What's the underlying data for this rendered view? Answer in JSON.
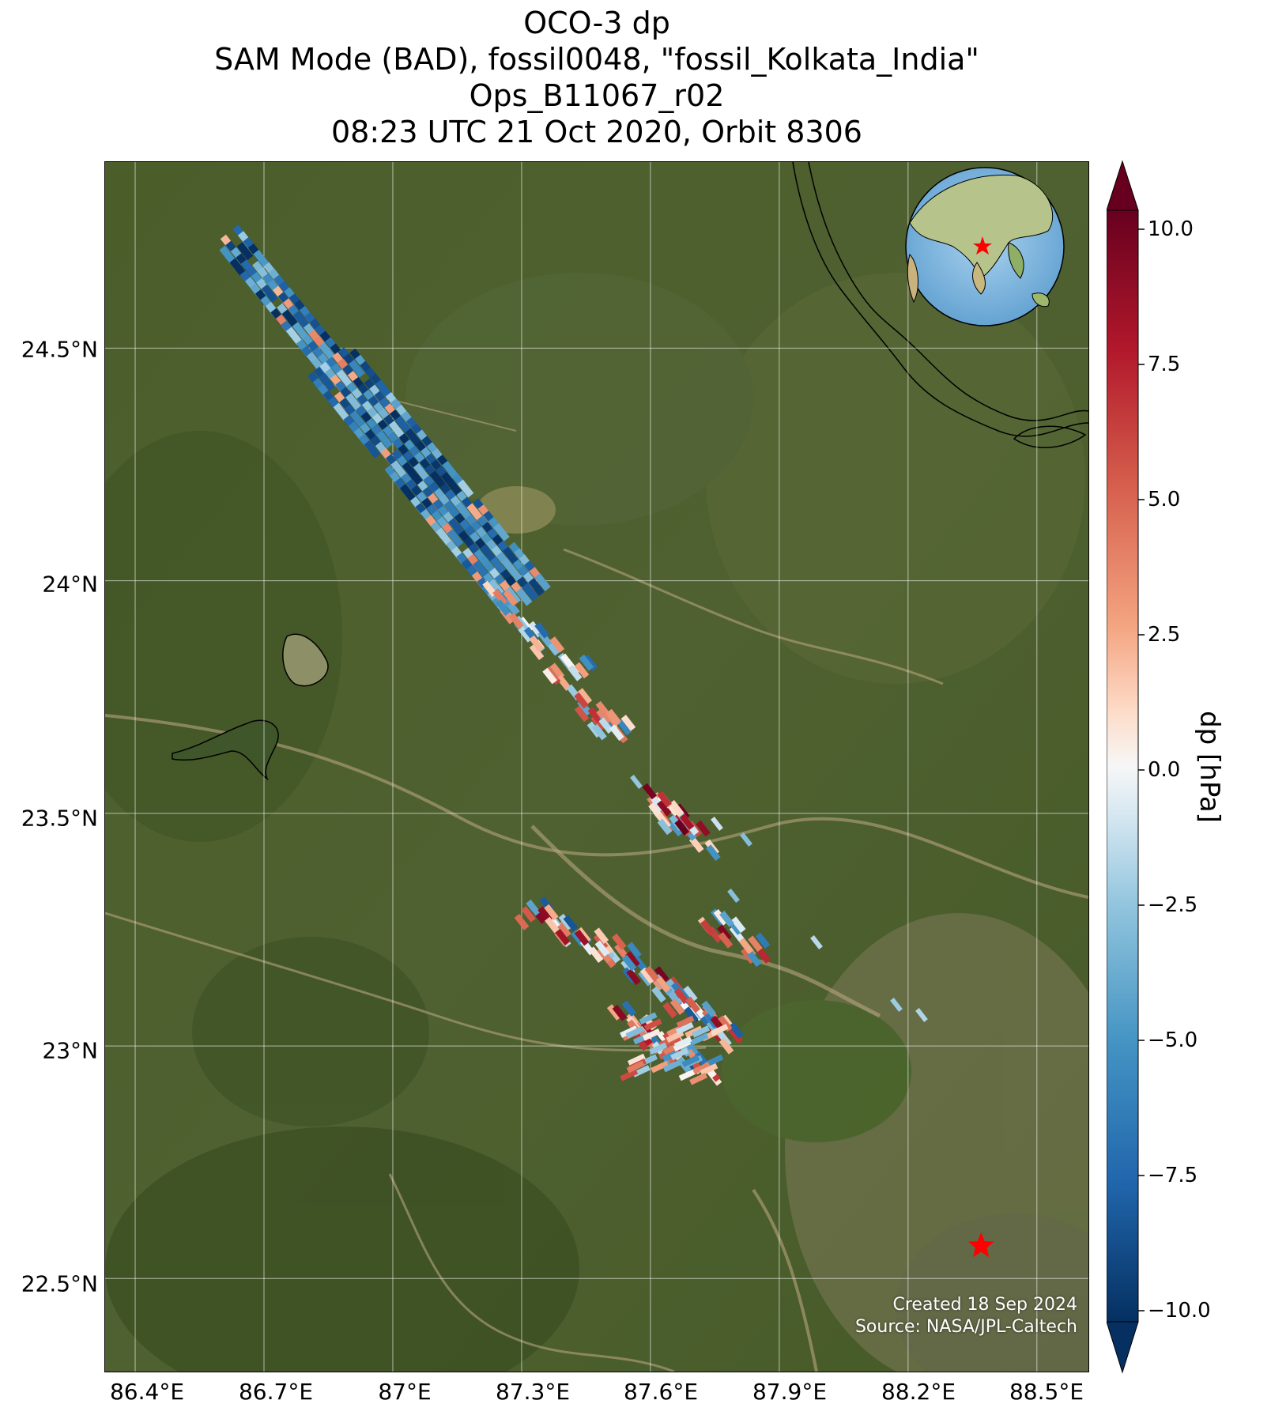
{
  "title": {
    "line1": "OCO-3 dp",
    "line2": "SAM Mode (BAD), fossil0048, \"fossil_Kolkata_India\"",
    "line3": "Ops_B11067_r02",
    "line4": "08:23 UTC 21 Oct 2020, Orbit 8306"
  },
  "map": {
    "lon_range": [
      86.33,
      88.62
    ],
    "lat_range": [
      22.3,
      24.9
    ],
    "lat_ticks": [
      "24.5°N",
      "24°N",
      "23.5°N",
      "23°N",
      "22.5°N"
    ],
    "lon_ticks": [
      "86.4°E",
      "86.7°E",
      "87°E",
      "87.3°E",
      "87.6°E",
      "87.9°E",
      "88.2°E",
      "88.5°E"
    ],
    "target_star": {
      "lon": 88.37,
      "lat": 22.57,
      "color": "#ff0000"
    },
    "inset_globe": "globe-inset-asia"
  },
  "colorbar": {
    "label": "dp [hPa]",
    "range": [
      -10,
      10
    ],
    "colormap": "RdBu_r",
    "ticks": [
      "10.0",
      "7.5",
      "5.0",
      "2.5",
      "0.0",
      "−2.5",
      "−5.0",
      "−7.5",
      "−10.0"
    ]
  },
  "credits": {
    "created": "Created 18 Sep 2024",
    "source": "Source: NASA/JPL-Caltech"
  }
}
